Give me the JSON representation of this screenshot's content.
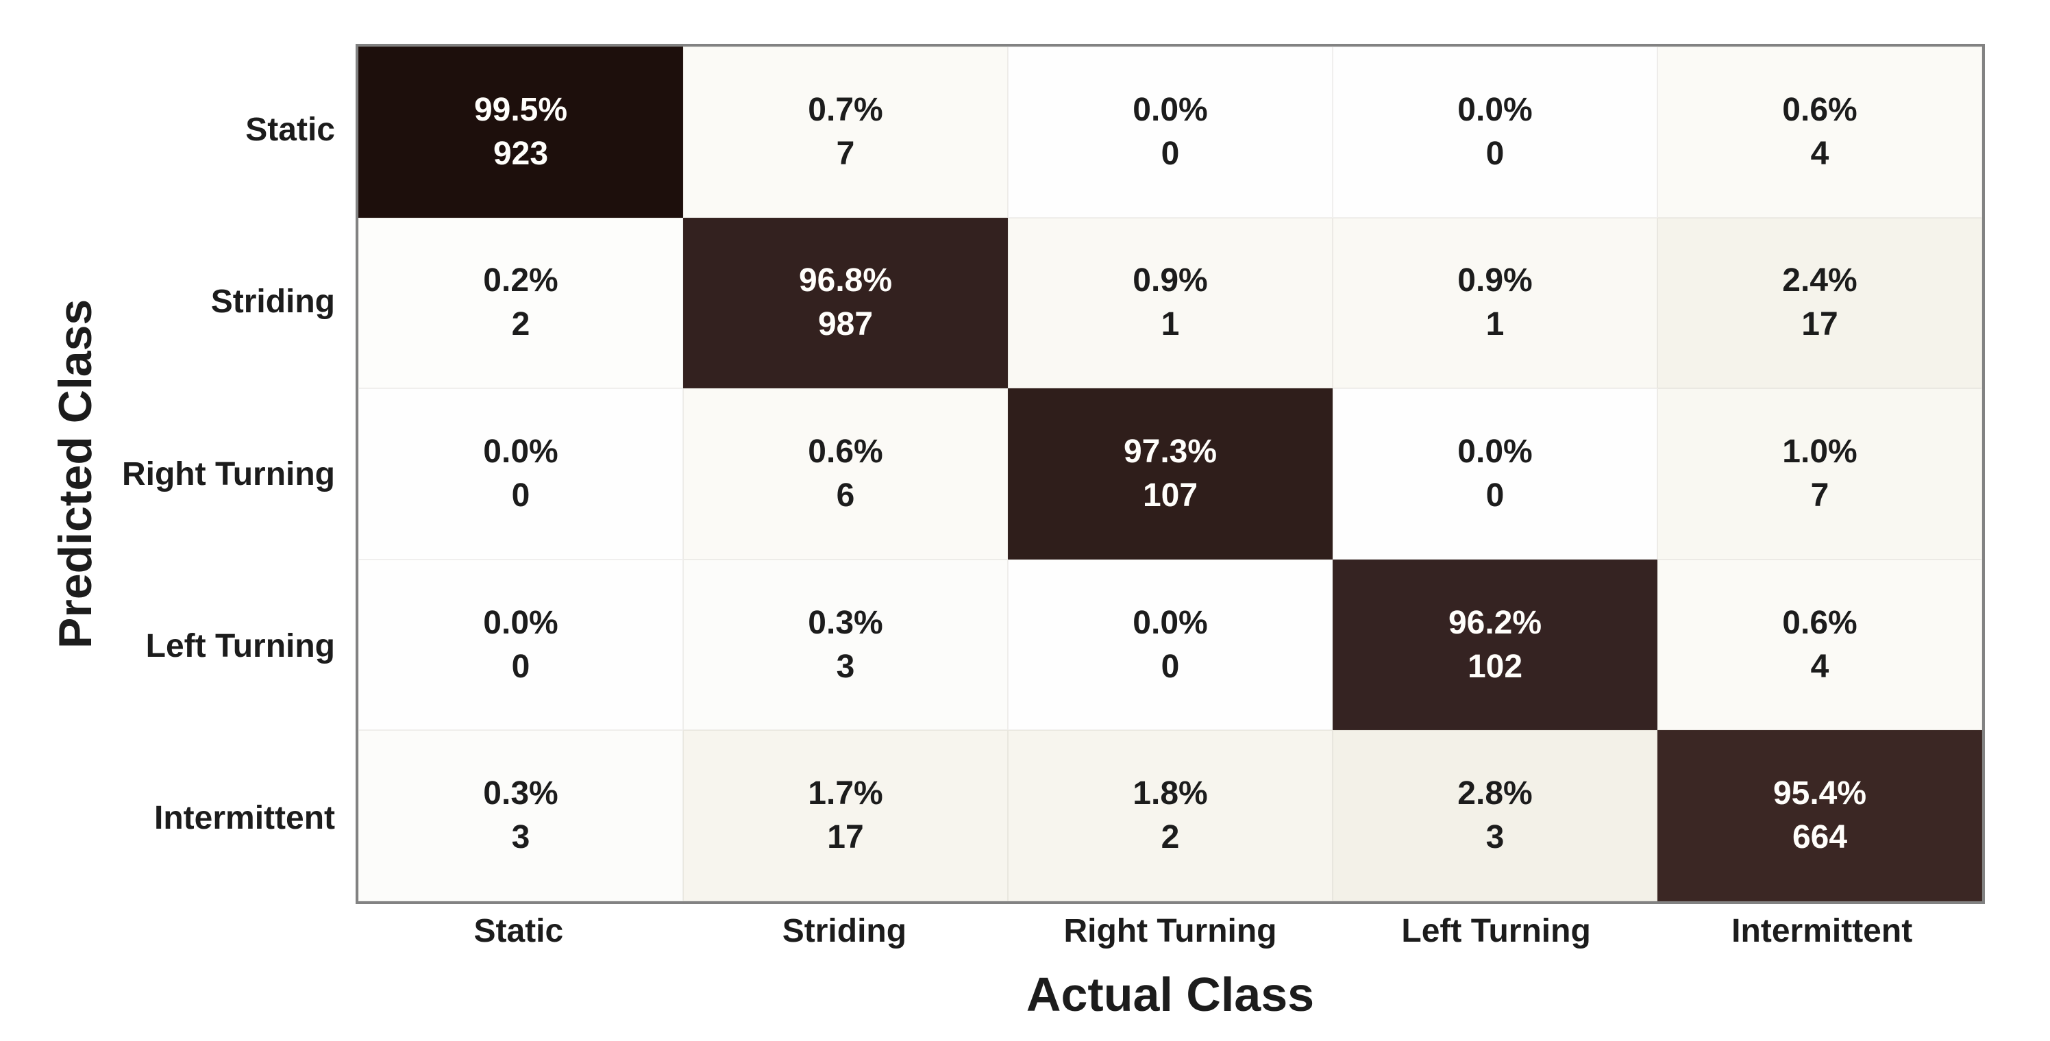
{
  "chart_data": {
    "type": "heatmap",
    "subtype": "confusion-matrix",
    "xlabel": "Actual Class",
    "ylabel": "Predicted Class",
    "actual_classes": [
      "Static",
      "Striding",
      "Right Turning",
      "Left Turning",
      "Intermittent"
    ],
    "predicted_classes": [
      "Static",
      "Striding",
      "Right Turning",
      "Left Turning",
      "Intermittent"
    ],
    "legend": "none",
    "grid": "off",
    "border_color": "#828282",
    "text_on_light": "#1c1c1c",
    "text_on_dark": "#fffefb",
    "rows": [
      {
        "predicted": "Static",
        "cells": [
          {
            "pct": "99.5%",
            "count": 923,
            "bg": "#1d0f0c",
            "fg": "light"
          },
          {
            "pct": "0.7%",
            "count": 7,
            "bg": "#fbfaf6",
            "fg": "dark"
          },
          {
            "pct": "0.0%",
            "count": 0,
            "bg": "#fefefe",
            "fg": "dark"
          },
          {
            "pct": "0.0%",
            "count": 0,
            "bg": "#fefefe",
            "fg": "dark"
          },
          {
            "pct": "0.6%",
            "count": 4,
            "bg": "#fbfaf6",
            "fg": "dark"
          }
        ]
      },
      {
        "predicted": "Striding",
        "cells": [
          {
            "pct": "0.2%",
            "count": 2,
            "bg": "#fdfdfb",
            "fg": "dark"
          },
          {
            "pct": "96.8%",
            "count": 987,
            "bg": "#33211f",
            "fg": "light"
          },
          {
            "pct": "0.9%",
            "count": 1,
            "bg": "#faf9f4",
            "fg": "dark"
          },
          {
            "pct": "0.9%",
            "count": 1,
            "bg": "#faf9f4",
            "fg": "dark"
          },
          {
            "pct": "2.4%",
            "count": 17,
            "bg": "#f5f3eb",
            "fg": "dark"
          }
        ]
      },
      {
        "predicted": "Right Turning",
        "cells": [
          {
            "pct": "0.0%",
            "count": 0,
            "bg": "#fefefe",
            "fg": "dark"
          },
          {
            "pct": "0.6%",
            "count": 6,
            "bg": "#fbfaf6",
            "fg": "dark"
          },
          {
            "pct": "97.3%",
            "count": 107,
            "bg": "#2f1e1b",
            "fg": "light"
          },
          {
            "pct": "0.0%",
            "count": 0,
            "bg": "#fefefe",
            "fg": "dark"
          },
          {
            "pct": "1.0%",
            "count": 7,
            "bg": "#f9f8f2",
            "fg": "dark"
          }
        ]
      },
      {
        "predicted": "Left Turning",
        "cells": [
          {
            "pct": "0.0%",
            "count": 0,
            "bg": "#fefefe",
            "fg": "dark"
          },
          {
            "pct": "0.3%",
            "count": 3,
            "bg": "#fcfcfa",
            "fg": "dark"
          },
          {
            "pct": "0.0%",
            "count": 0,
            "bg": "#fefefe",
            "fg": "dark"
          },
          {
            "pct": "96.2%",
            "count": 102,
            "bg": "#352322",
            "fg": "light"
          },
          {
            "pct": "0.6%",
            "count": 4,
            "bg": "#fbfaf6",
            "fg": "dark"
          }
        ]
      },
      {
        "predicted": "Intermittent",
        "cells": [
          {
            "pct": "0.3%",
            "count": 3,
            "bg": "#fcfcfa",
            "fg": "dark"
          },
          {
            "pct": "1.7%",
            "count": 17,
            "bg": "#f7f5ee",
            "fg": "dark"
          },
          {
            "pct": "1.8%",
            "count": 2,
            "bg": "#f7f5ee",
            "fg": "dark"
          },
          {
            "pct": "2.8%",
            "count": 3,
            "bg": "#f3f1e8",
            "fg": "dark"
          },
          {
            "pct": "95.4%",
            "count": 664,
            "bg": "#3b2724",
            "fg": "light"
          }
        ]
      }
    ]
  }
}
